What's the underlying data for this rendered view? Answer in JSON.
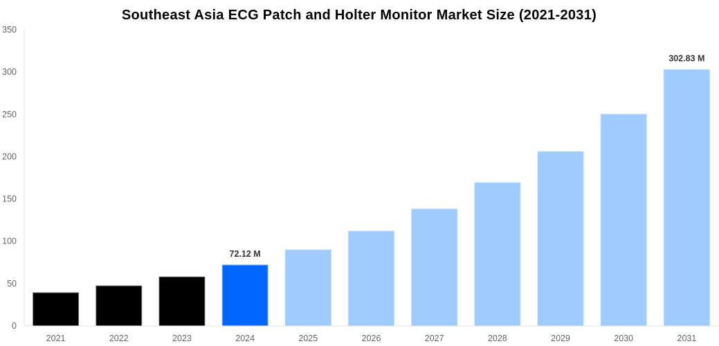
{
  "chart_data": {
    "type": "bar",
    "title": "Southeast Asia ECG Patch and Holter Monitor Market Size (2021-2031)",
    "xlabel": "",
    "ylabel": "",
    "categories": [
      "2021",
      "2022",
      "2023",
      "2024",
      "2025",
      "2026",
      "2027",
      "2028",
      "2029",
      "2030",
      "2031"
    ],
    "values": [
      39.3,
      47.4,
      58.0,
      72.12,
      89.9,
      112.0,
      138.2,
      169.3,
      206.0,
      250.2,
      302.83
    ],
    "ylim": [
      0,
      350
    ],
    "yticks": [
      0,
      50,
      100,
      150,
      200,
      250,
      300,
      350
    ],
    "grid": false,
    "colors": [
      "#000000",
      "#000000",
      "#000000",
      "#0066ff",
      "#a0cbff",
      "#a0cbff",
      "#a0cbff",
      "#a0cbff",
      "#a0cbff",
      "#a0cbff",
      "#a0cbff"
    ],
    "data_labels": {
      "3": "72.12 M",
      "10": "302.83 M"
    }
  }
}
